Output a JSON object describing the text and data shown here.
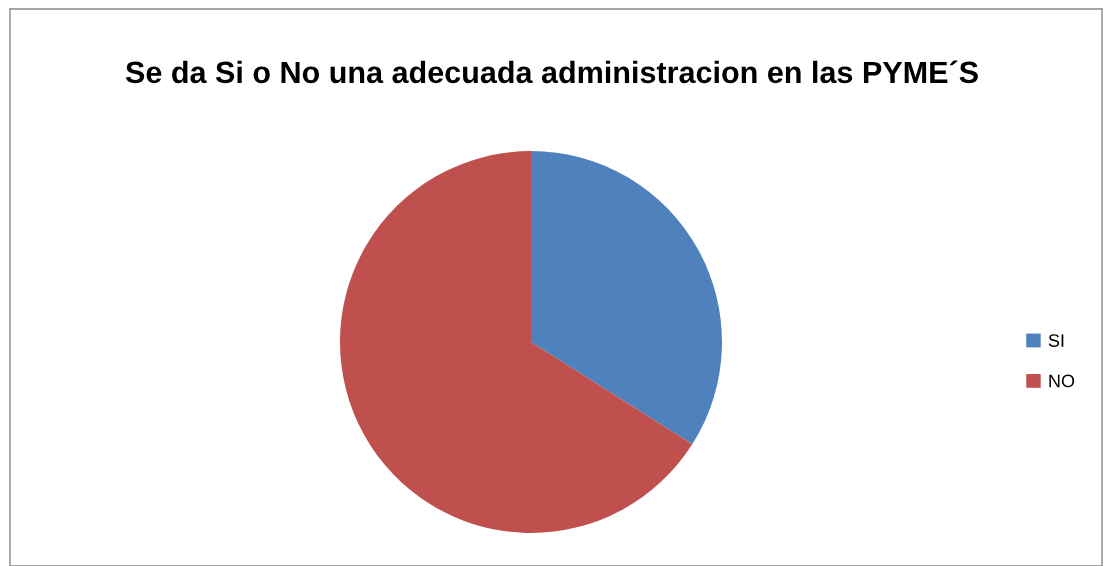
{
  "chart_data": {
    "type": "pie",
    "title": "Se da Si o No una adecuada administracion en las PYME´S",
    "categories": [
      "SI",
      "NO"
    ],
    "values": [
      34,
      66
    ],
    "colors": [
      "#4f81bd",
      "#c0504d"
    ],
    "legend": "right"
  }
}
